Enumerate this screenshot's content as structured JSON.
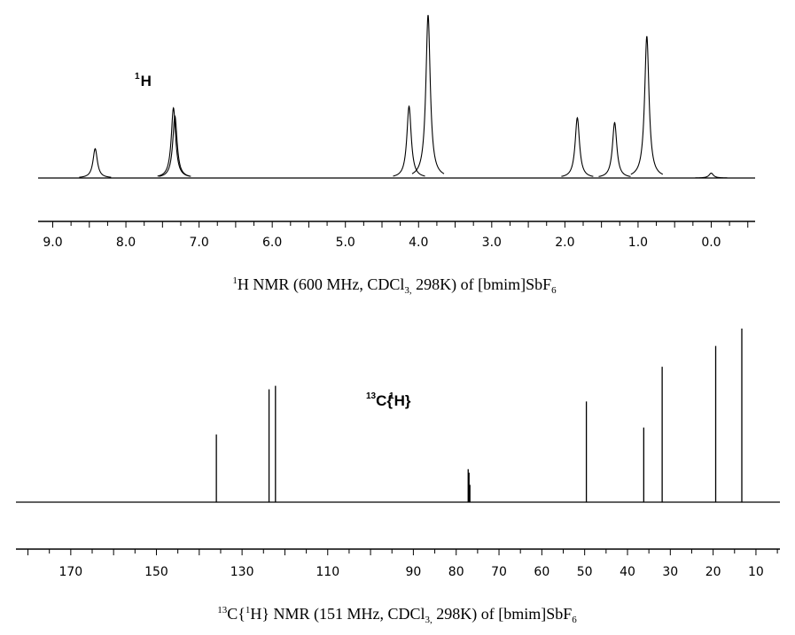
{
  "chart_data": [
    {
      "type": "line",
      "subtype": "nmr-spectrum",
      "nucleus_label": {
        "sup": "1",
        "text": "H"
      },
      "caption": {
        "sup": "1",
        "pre": "H NMR (600 MHz, CDCl",
        "sub1": "3,",
        "mid": " 298K) of [bmim]SbF",
        "sub2": "6"
      },
      "xlim": [
        9.2,
        -0.6
      ],
      "x_reversed": true,
      "xunit": "ppm",
      "ticks": [
        "9.0",
        "8.0",
        "7.0",
        "6.0",
        "5.0",
        "4.0",
        "3.0",
        "2.0",
        "1.0",
        "0.0"
      ],
      "tick_values": [
        9,
        8,
        7,
        6,
        5,
        4,
        3,
        2,
        1,
        0
      ],
      "minor_tick_step": 0.25,
      "peaks": [
        {
          "ppm": 8.42,
          "intensity": 0.18
        },
        {
          "ppm": 7.35,
          "intensity": 0.43
        },
        {
          "ppm": 7.33,
          "intensity": 0.38
        },
        {
          "ppm": 4.13,
          "intensity": 0.44
        },
        {
          "ppm": 3.87,
          "intensity": 1.0
        },
        {
          "ppm": 1.83,
          "intensity": 0.37
        },
        {
          "ppm": 1.32,
          "intensity": 0.34
        },
        {
          "ppm": 0.88,
          "intensity": 0.87
        },
        {
          "ppm": 0.0,
          "intensity": 0.03
        }
      ],
      "grid": false,
      "color": "#000000"
    },
    {
      "type": "line",
      "subtype": "nmr-spectrum",
      "nucleus_label": {
        "sup": "13",
        "text1": "C{",
        "sup2": "1",
        "text2": "H}"
      },
      "caption": {
        "sup": "13",
        "pre": "C{",
        "sup2": "1",
        "mid0": "H} NMR (151 MHz, CDCl",
        "sub1": "3,",
        "mid": " 298K) of [bmim]SbF",
        "sub2": "6"
      },
      "xlim": [
        182.8,
        4.4
      ],
      "x_reversed": true,
      "xunit": "ppm",
      "ticks": [
        "170",
        "150",
        "130",
        "110",
        "90",
        "80",
        "70",
        "60",
        "50",
        "40",
        "30",
        "20",
        "10"
      ],
      "tick_values": [
        170,
        150,
        130,
        110,
        90,
        80,
        70,
        60,
        50,
        40,
        30,
        20,
        10
      ],
      "minor_tick_step": 5,
      "peaks": [
        {
          "ppm": 136.0,
          "intensity": 0.39
        },
        {
          "ppm": 123.7,
          "intensity": 0.65
        },
        {
          "ppm": 122.2,
          "intensity": 0.67
        },
        {
          "ppm": 77.2,
          "intensity": 0.19
        },
        {
          "ppm": 77.0,
          "intensity": 0.17
        },
        {
          "ppm": 76.8,
          "intensity": 0.1
        },
        {
          "ppm": 49.6,
          "intensity": 0.58
        },
        {
          "ppm": 36.2,
          "intensity": 0.43
        },
        {
          "ppm": 31.9,
          "intensity": 0.78
        },
        {
          "ppm": 19.4,
          "intensity": 0.9
        },
        {
          "ppm": 13.3,
          "intensity": 1.0
        }
      ],
      "grid": false,
      "color": "#000000"
    }
  ]
}
